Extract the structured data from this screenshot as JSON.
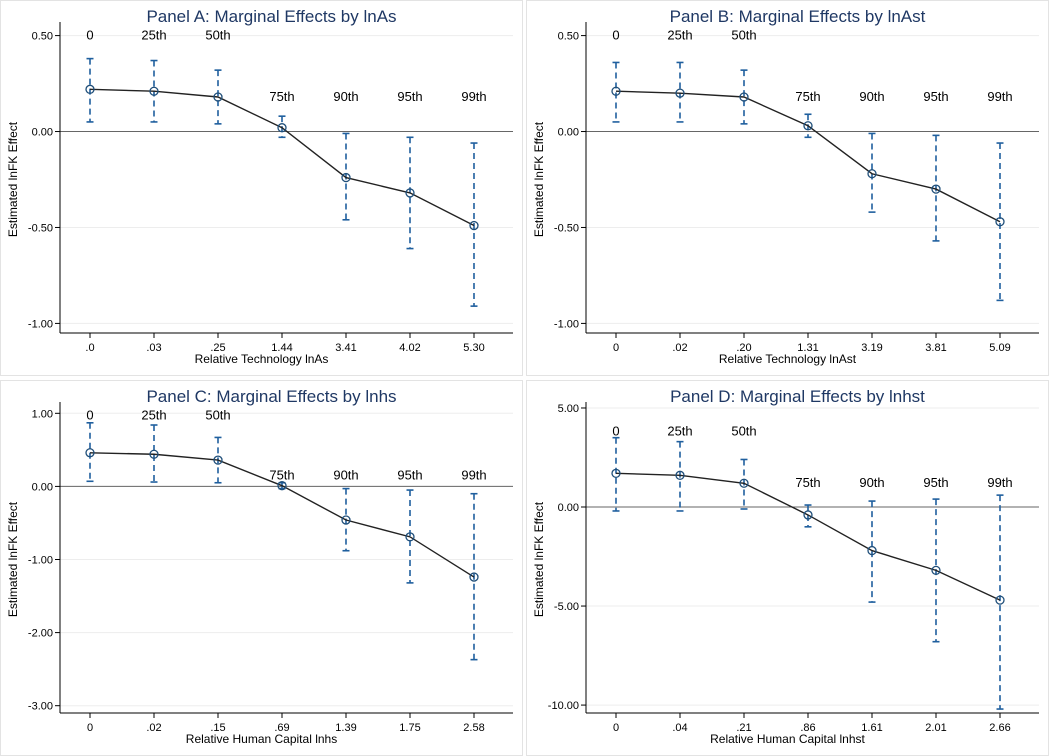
{
  "chart_data": [
    {
      "type": "line",
      "title": "Panel A: Marginal Effects by lnAs",
      "xlabel": "Relative Technology lnAs",
      "ylabel": "Estimated lnFK Effect",
      "categories": [
        ".0",
        ".03",
        ".25",
        "1.44",
        "3.41",
        "4.02",
        "5.30"
      ],
      "percentiles": [
        "0",
        "25th",
        "50th",
        "75th",
        "90th",
        "95th",
        "99th"
      ],
      "values": [
        0.22,
        0.21,
        0.18,
        0.02,
        -0.24,
        -0.32,
        -0.49
      ],
      "ci_low": [
        0.05,
        0.05,
        0.04,
        -0.03,
        -0.46,
        -0.61,
        -0.91
      ],
      "ci_high": [
        0.38,
        0.37,
        0.32,
        0.08,
        -0.01,
        -0.03,
        -0.06
      ],
      "ylim": [
        -1.05,
        0.55
      ],
      "yticks": [
        -1.0,
        -0.5,
        0.0,
        0.5
      ],
      "ytick_labels": [
        "-1.00",
        "-0.50",
        "0.00",
        "0.50"
      ],
      "label_y": [
        0.5,
        0.5,
        0.5,
        0.18,
        0.18,
        0.18,
        0.18
      ]
    },
    {
      "type": "line",
      "title": "Panel B: Marginal Effects by lnAst",
      "xlabel": "Relative Technology lnAst",
      "ylabel": "Estimated lnFK Effect",
      "categories": [
        "0",
        ".02",
        ".20",
        "1.31",
        "3.19",
        "3.81",
        "5.09"
      ],
      "percentiles": [
        "0",
        "25th",
        "50th",
        "75th",
        "90th",
        "95th",
        "99th"
      ],
      "values": [
        0.21,
        0.2,
        0.18,
        0.03,
        -0.22,
        -0.3,
        -0.47
      ],
      "ci_low": [
        0.05,
        0.05,
        0.04,
        -0.03,
        -0.42,
        -0.57,
        -0.88
      ],
      "ci_high": [
        0.36,
        0.36,
        0.32,
        0.09,
        -0.01,
        -0.02,
        -0.06
      ],
      "ylim": [
        -1.05,
        0.55
      ],
      "yticks": [
        -1.0,
        -0.5,
        0.0,
        0.5
      ],
      "ytick_labels": [
        "-1.00",
        "-0.50",
        "0.00",
        "0.50"
      ],
      "label_y": [
        0.5,
        0.5,
        0.5,
        0.18,
        0.18,
        0.18,
        0.18
      ]
    },
    {
      "type": "line",
      "title": "Panel C: Marginal Effects by lnhs",
      "xlabel": "Relative Human Capital lnhs",
      "ylabel": "Estimated lnFK Effect",
      "categories": [
        "0",
        ".02",
        ".15",
        ".69",
        "1.39",
        "1.75",
        "2.58"
      ],
      "percentiles": [
        "0",
        "25th",
        "50th",
        "75th",
        "90th",
        "95th",
        "99th"
      ],
      "values": [
        0.46,
        0.44,
        0.36,
        0.01,
        -0.46,
        -0.69,
        -1.24
      ],
      "ci_low": [
        0.07,
        0.06,
        0.05,
        -0.03,
        -0.88,
        -1.32,
        -2.37
      ],
      "ci_high": [
        0.87,
        0.84,
        0.67,
        0.05,
        -0.03,
        -0.05,
        -0.1
      ],
      "ylim": [
        -3.1,
        1.1
      ],
      "yticks": [
        -3.0,
        -2.0,
        -1.0,
        0.0,
        1.0
      ],
      "ytick_labels": [
        "-3.00",
        "-2.00",
        "-1.00",
        "0.00",
        "1.00"
      ],
      "label_y": [
        0.97,
        0.97,
        0.97,
        0.15,
        0.15,
        0.15,
        0.15
      ]
    },
    {
      "type": "line",
      "title": "Panel D: Marginal Effects by lnhst",
      "xlabel": "Relative Human Capital lnhst",
      "ylabel": "Estimated lnFK Effect",
      "categories": [
        "0",
        ".04",
        ".21",
        ".86",
        "1.61",
        "2.01",
        "2.66"
      ],
      "percentiles": [
        "0",
        "25th",
        "50th",
        "75th",
        "90th",
        "95th",
        "99th"
      ],
      "values": [
        1.7,
        1.6,
        1.2,
        -0.4,
        -2.2,
        -3.2,
        -4.7
      ],
      "ci_low": [
        -0.2,
        -0.2,
        -0.1,
        -1.0,
        -4.8,
        -6.8,
        -10.2
      ],
      "ci_high": [
        3.5,
        3.3,
        2.4,
        0.1,
        0.3,
        0.4,
        0.6
      ],
      "ylim": [
        -10.4,
        5.1
      ],
      "yticks": [
        -10.0,
        -5.0,
        0.0,
        5.0
      ],
      "ytick_labels": [
        "-10.00",
        "-5.00",
        "0.00",
        "5.00"
      ],
      "label_y": [
        3.8,
        3.8,
        3.8,
        1.2,
        1.2,
        1.2,
        1.2
      ]
    }
  ],
  "colors": {
    "ci": "#1f5f9e",
    "line": "#222222",
    "point": "#1f4e79",
    "title": "#1f3864"
  }
}
